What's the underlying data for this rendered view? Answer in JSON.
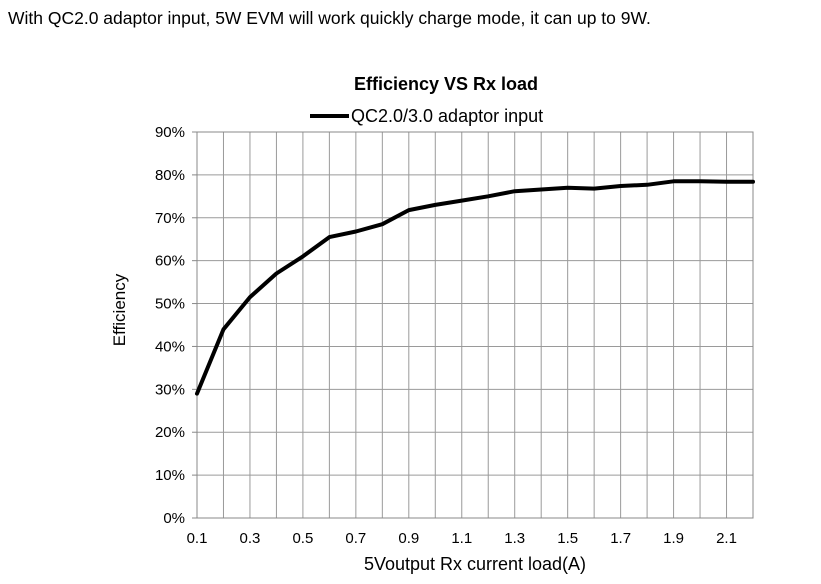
{
  "page": {
    "intro_text": "With QC2.0 adaptor input, 5W EVM will work quickly charge mode, it can up to 9W."
  },
  "chart_data": {
    "type": "line",
    "title": "Efficiency VS Rx load",
    "xlabel": "5Voutput Rx current load(A)",
    "ylabel": "Efficiency",
    "x": [
      0.1,
      0.2,
      0.3,
      0.4,
      0.5,
      0.6,
      0.7,
      0.8,
      0.9,
      1.0,
      1.1,
      1.2,
      1.3,
      1.4,
      1.5,
      1.6,
      1.7,
      1.8,
      1.9,
      2.0,
      2.1,
      2.2
    ],
    "series": [
      {
        "name": "QC2.0/3.0 adaptor input",
        "color": "#000000",
        "values": [
          29,
          44,
          51.5,
          57,
          61,
          65.5,
          66.8,
          68.5,
          71.8,
          73,
          74,
          75,
          76.2,
          76.6,
          77,
          76.8,
          77.4,
          77.7,
          78.5,
          78.5,
          78.4,
          78.4
        ]
      }
    ],
    "xlim": [
      0.1,
      2.2
    ],
    "ylim": [
      0,
      90
    ],
    "xticks": [
      0.1,
      0.3,
      0.5,
      0.7,
      0.9,
      1.1,
      1.3,
      1.5,
      1.7,
      1.9,
      2.1
    ],
    "xtick_labels": [
      "0.1",
      "0.3",
      "0.5",
      "0.7",
      "0.9",
      "1.1",
      "1.3",
      "1.5",
      "1.7",
      "1.9",
      "2.1"
    ],
    "x_grid_step": 0.1,
    "yticks": [
      0,
      10,
      20,
      30,
      40,
      50,
      60,
      70,
      80,
      90
    ],
    "ytick_labels": [
      "0%",
      "10%",
      "20%",
      "30%",
      "40%",
      "50%",
      "60%",
      "70%",
      "80%",
      "90%"
    ],
    "grid": true,
    "legend_position": "top-center"
  }
}
